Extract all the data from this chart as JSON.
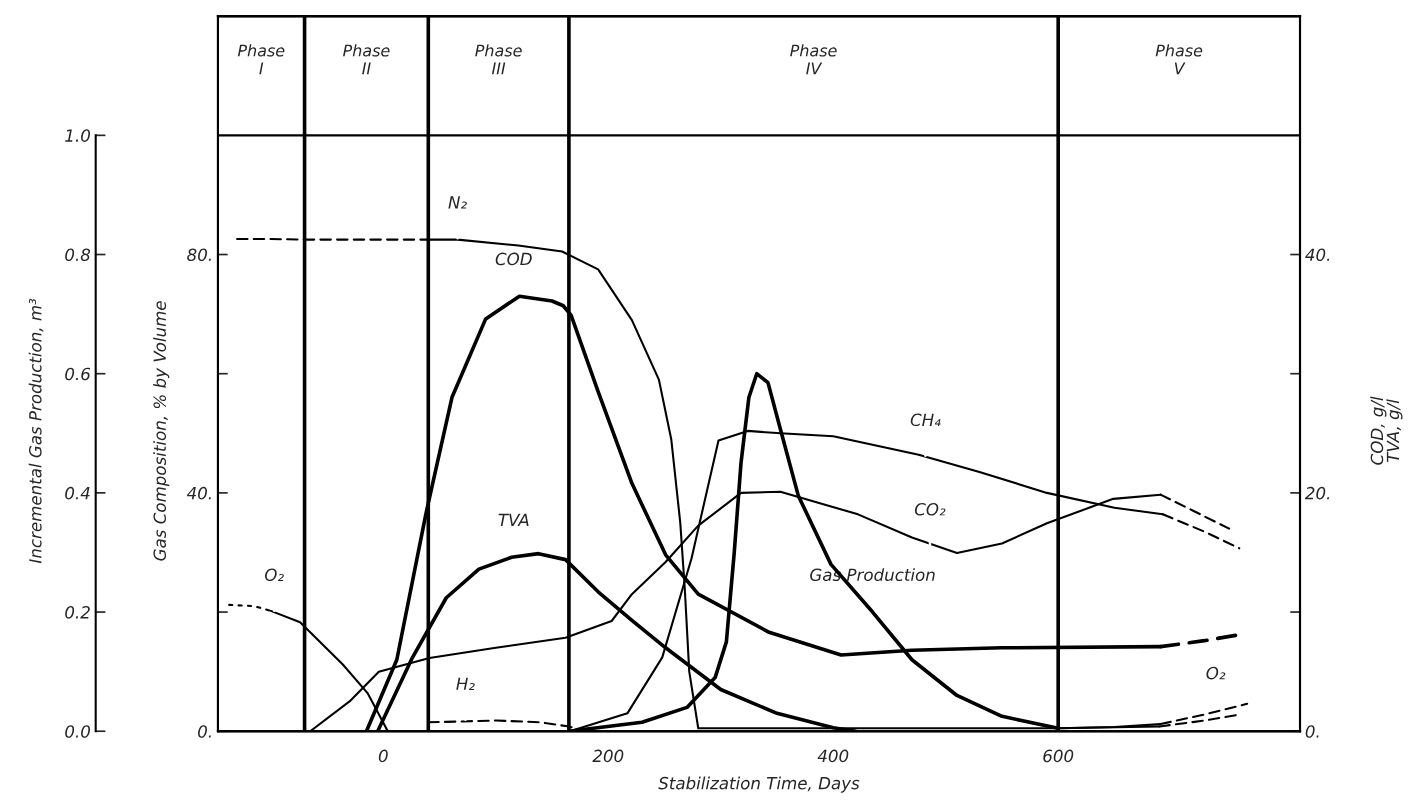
{
  "chart_data": {
    "type": "line",
    "xlabel": "Stabilization Time, Days",
    "ylabel": "Gas Composition, % by Volume",
    "y2label": "COD, g/l",
    "y3label": "Incremental Gas Production, m³",
    "xlim": [
      -147,
      815
    ],
    "xticks": [
      0,
      200,
      400,
      600
    ],
    "ylim": [
      0,
      120
    ],
    "yticks": [
      {
        "value": 0,
        "label": "0."
      },
      {
        "value": 20,
        "label": null
      },
      {
        "value": 40,
        "label": "40."
      },
      {
        "value": 60,
        "label": null
      },
      {
        "value": 80,
        "label": "80."
      }
    ],
    "y2lim": [
      0,
      60
    ],
    "y2ticks": [
      {
        "value": 0,
        "label": "0."
      },
      {
        "value": 10,
        "label": null
      },
      {
        "value": 20,
        "label": "20."
      },
      {
        "value": 30,
        "label": null
      },
      {
        "value": 40,
        "label": "40."
      }
    ],
    "y3lim": [
      0,
      1.2
    ],
    "y3ticks": [
      {
        "value": 0,
        "label": "0.0"
      },
      0.2,
      0.4,
      0.6,
      0.8,
      {
        "value": 1.0,
        "label": "1.0"
      }
    ],
    "ref_lines": [
      {
        "axis": "x",
        "value": -70
      },
      {
        "axis": "x",
        "value": 40
      },
      {
        "axis": "x",
        "value": 165
      },
      {
        "axis": "x",
        "value": 600
      },
      {
        "axis": "y",
        "value": 100
      }
    ],
    "series": [
      {
        "axis": "y",
        "color": "#000000",
        "line_style": "dashed",
        "x": [
          -130,
          -100,
          -68,
          0,
          40
        ],
        "values": [
          82.6,
          82.6,
          82.5,
          82.5,
          82.5
        ]
      },
      {
        "axis": "y",
        "color": "#000000",
        "line_style": "solid",
        "x": [
          40,
          66,
          120,
          159,
          191,
          221,
          245,
          256,
          264,
          268,
          272,
          280,
          400,
          600,
          690
        ],
        "values": [
          82.5,
          82.5,
          81.5,
          80.5,
          77.5,
          69,
          59,
          49,
          35,
          24,
          10,
          0.5,
          0.5,
          0.5,
          0.8
        ]
      },
      {
        "axis": "y",
        "color": "#000000",
        "line_style": "dashed",
        "x": [
          690,
          730,
          761
        ],
        "values": [
          0.8,
          1.8,
          2.8
        ]
      },
      {
        "axis": "y",
        "color": "#000000",
        "line_style": "dotted",
        "x": [
          -137,
          -115,
          -100
        ],
        "values": [
          21.2,
          21,
          20.2
        ]
      },
      {
        "axis": "y",
        "color": "#000000",
        "line_style": "solid",
        "x": [
          -100,
          -74,
          -36,
          -14,
          4
        ],
        "values": [
          20.2,
          18.3,
          11.2,
          6.4,
          0
        ]
      },
      {
        "axis": "y",
        "color": "#000000",
        "line_style": "solid",
        "x": [
          600,
          650,
          691
        ],
        "values": [
          0.5,
          0.7,
          1.2
        ]
      },
      {
        "axis": "y",
        "color": "#000000",
        "line_style": "dashed",
        "x": [
          691,
          730,
          768
        ],
        "values": [
          1.2,
          2.8,
          4.6
        ]
      },
      {
        "axis": "y",
        "color": "#000000",
        "line_style": "dashed",
        "x": [
          40,
          100,
          140,
          165,
          180
        ],
        "values": [
          1.5,
          1.8,
          1.5,
          0.8,
          0
        ]
      },
      {
        "axis": "y",
        "color": "#000000",
        "line_style": "solid",
        "x": [
          166,
          217,
          248,
          274,
          298,
          324,
          353,
          400,
          476,
          530,
          590,
          650,
          693
        ],
        "values": [
          0,
          3,
          12.4,
          29,
          48.8,
          50.4,
          50,
          49.5,
          46.4,
          43.5,
          40,
          37.5,
          36.4
        ]
      },
      {
        "axis": "y",
        "color": "#000000",
        "line_style": "dashed",
        "x": [
          693,
          730,
          761
        ],
        "values": [
          36.4,
          33.5,
          30.7
        ]
      },
      {
        "axis": "y",
        "color": "#000000",
        "line_style": "solid",
        "x": [
          -65,
          -30,
          -4,
          41,
          100,
          162,
          203,
          221,
          251,
          280,
          318,
          353,
          422,
          470,
          510,
          550,
          590,
          649,
          691
        ],
        "values": [
          0,
          5,
          10,
          12.3,
          14,
          15.7,
          18.5,
          23,
          28.4,
          34.5,
          40,
          40.2,
          36.4,
          32.5,
          29.9,
          31.5,
          34.9,
          39,
          39.7
        ]
      },
      {
        "axis": "y",
        "color": "#000000",
        "line_style": "dashed",
        "x": [
          691,
          720,
          752
        ],
        "values": [
          39.7,
          37,
          34
        ]
      },
      {
        "axis": "y2",
        "color": "#000000",
        "line_style": "solid",
        "x": [
          -15,
          12,
          38,
          61,
          91,
          121,
          150,
          160,
          167,
          191,
          221,
          251,
          280,
          343,
          407,
          470,
          550,
          691
        ],
        "values": [
          0,
          6,
          18.3,
          28,
          34.6,
          36.5,
          36.1,
          35.7,
          34.9,
          28.5,
          20.8,
          14.8,
          11.5,
          8.3,
          6.4,
          6.8,
          7,
          7.1
        ]
      },
      {
        "axis": "y2",
        "color": "#000000",
        "line_style": "dashed",
        "x": [
          691,
          730,
          761
        ],
        "values": [
          7.1,
          7.6,
          8.1
        ]
      },
      {
        "axis": "y2",
        "color": "#000000",
        "line_style": "solid",
        "x": [
          -5,
          26,
          56,
          85,
          114,
          138,
          162,
          191,
          221,
          251,
          300,
          350,
          400,
          420
        ],
        "values": [
          0,
          6.2,
          11.2,
          13.6,
          14.6,
          14.9,
          14.4,
          11.7,
          9.3,
          7.0,
          3.5,
          1.5,
          0.3,
          0
        ]
      },
      {
        "axis": "y3",
        "color": "#000000",
        "line_style": "solid",
        "x": [
          165,
          230,
          270,
          295,
          305,
          312,
          318,
          325,
          332,
          342,
          354,
          369,
          398,
          435,
          470,
          510,
          550,
          600
        ],
        "values": [
          0,
          0.015,
          0.04,
          0.09,
          0.15,
          0.3,
          0.45,
          0.56,
          0.6,
          0.585,
          0.5,
          0.395,
          0.28,
          0.2,
          0.12,
          0.06,
          0.025,
          0.005
        ]
      }
    ],
    "annotations": [
      "Phase\nI",
      "Phase\nII",
      "Phase\nIII",
      "Phase\nIV",
      "Phase\nV",
      {
        "text": "N₂",
        "x": 66,
        "y": 82.5
      },
      {
        "text": "COD",
        "x": 116,
        "y": 73
      },
      {
        "text": "TVA",
        "x": 116,
        "y": 29.2
      },
      {
        "text": "CH₄",
        "x": 482,
        "y": 46
      },
      {
        "text": "CO₂",
        "x": 486,
        "y": 31
      },
      {
        "text": "Gas Production",
        "x": 435,
        "y": 20
      },
      {
        "text": "O₂",
        "x": -97,
        "y": 20
      },
      {
        "text": "O₂",
        "x": 740,
        "y": 3.5
      },
      {
        "text": "H₂",
        "x": 73,
        "y": 1.7
      },
      "TVA, g/l"
    ]
  }
}
